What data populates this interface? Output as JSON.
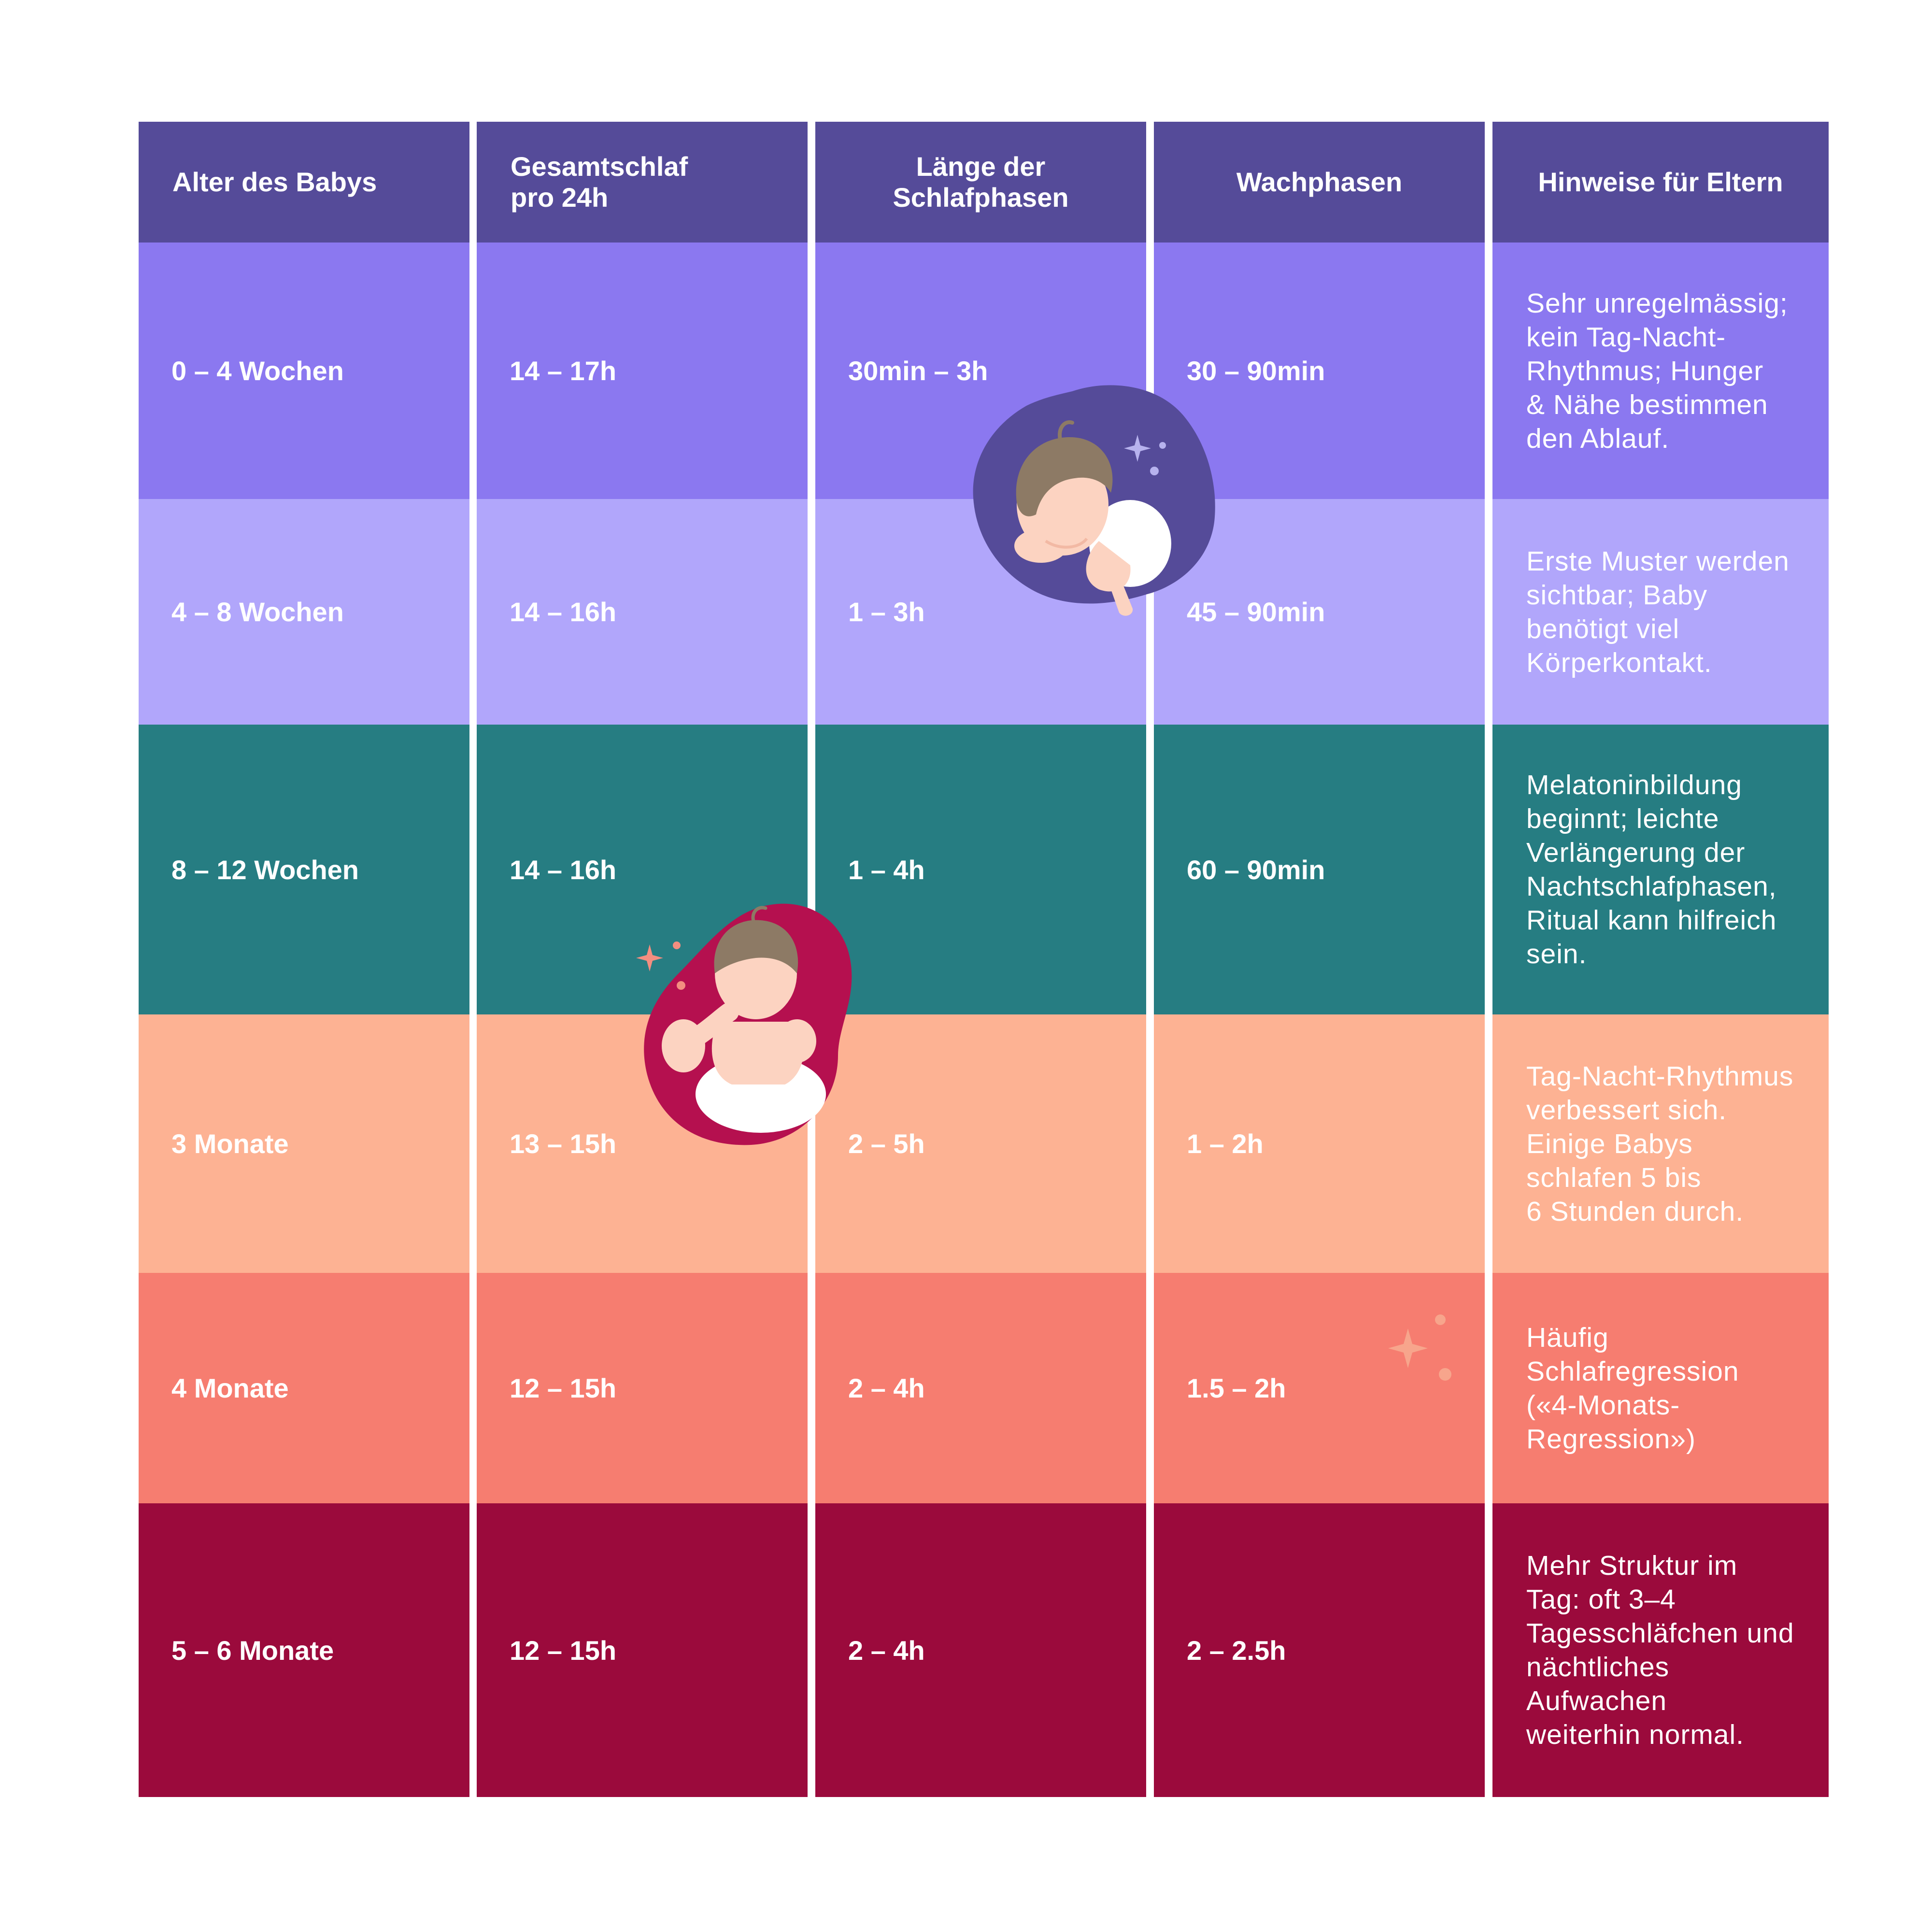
{
  "colors": {
    "header": "#554b99",
    "rows": [
      "#8b78f0",
      "#b1a6fb",
      "#267d82",
      "#fdb293",
      "#f67d70",
      "#9b0a3c"
    ],
    "divider": "#ffffff"
  },
  "columns": [
    "Alter des Babys",
    "Gesamtschlaf\npro 24h",
    "Länge der\nSchlafphasen",
    "Wachphasen",
    "Hinweise für Eltern"
  ],
  "rows": [
    {
      "age": "0 – 4 Wochen",
      "total_sleep": "14 – 17h",
      "sleep_phase": "30min – 3h",
      "wake_phase": "30 – 90min",
      "note": "Sehr unregelmässig;\nkein Tag-Nacht-\nRhythmus; Hunger\n& Nähe bestimmen\nden Ablauf."
    },
    {
      "age": "4 – 8 Wochen",
      "total_sleep": "14 – 16h",
      "sleep_phase": "1 – 3h",
      "wake_phase": "45 – 90min",
      "note": "Erste Muster werden\nsichtbar; Baby\nbenötigt viel\nKörperkontakt."
    },
    {
      "age": "8 – 12 Wochen",
      "total_sleep": "14 – 16h",
      "sleep_phase": "1 – 4h",
      "wake_phase": "60 – 90min",
      "note": "Melatoninbildung\nbeginnt; leichte\nVerlängerung der\nNachtschlafphasen,\nRitual kann hilfreich\nsein."
    },
    {
      "age": "3 Monate",
      "total_sleep": "13 – 15h",
      "sleep_phase": "2 – 5h",
      "wake_phase": "1 – 2h",
      "note": "Tag-Nacht-Rhythmus\nverbessert sich.\nEinige Babys\nschlafen 5 bis\n6 Stunden durch."
    },
    {
      "age": "4 Monate",
      "total_sleep": "12 – 15h",
      "sleep_phase": "2 – 4h",
      "wake_phase": "1.5 – 2h",
      "note": "Häufig\nSchlafregression\n(«4-Monats-\nRegression»)"
    },
    {
      "age": "5 – 6 Monate",
      "total_sleep": "12 – 15h",
      "sleep_phase": "2 – 4h",
      "wake_phase": "2 – 2.5h",
      "note": "Mehr Struktur im\nTag: oft 3–4\nTagesschläfchen und\nnächtliches\nAufwachen\nweiterhin normal."
    }
  ],
  "illustrations": [
    {
      "name": "sleeping-baby-illustration",
      "icon": "sleeping-baby-icon",
      "color": "#554b99"
    },
    {
      "name": "sitting-baby-illustration",
      "icon": "sitting-baby-icon",
      "color": "#b5104f"
    },
    {
      "name": "sparkle-decoration",
      "icon": "sparkle-icon",
      "color": "#f7a58c"
    }
  ]
}
